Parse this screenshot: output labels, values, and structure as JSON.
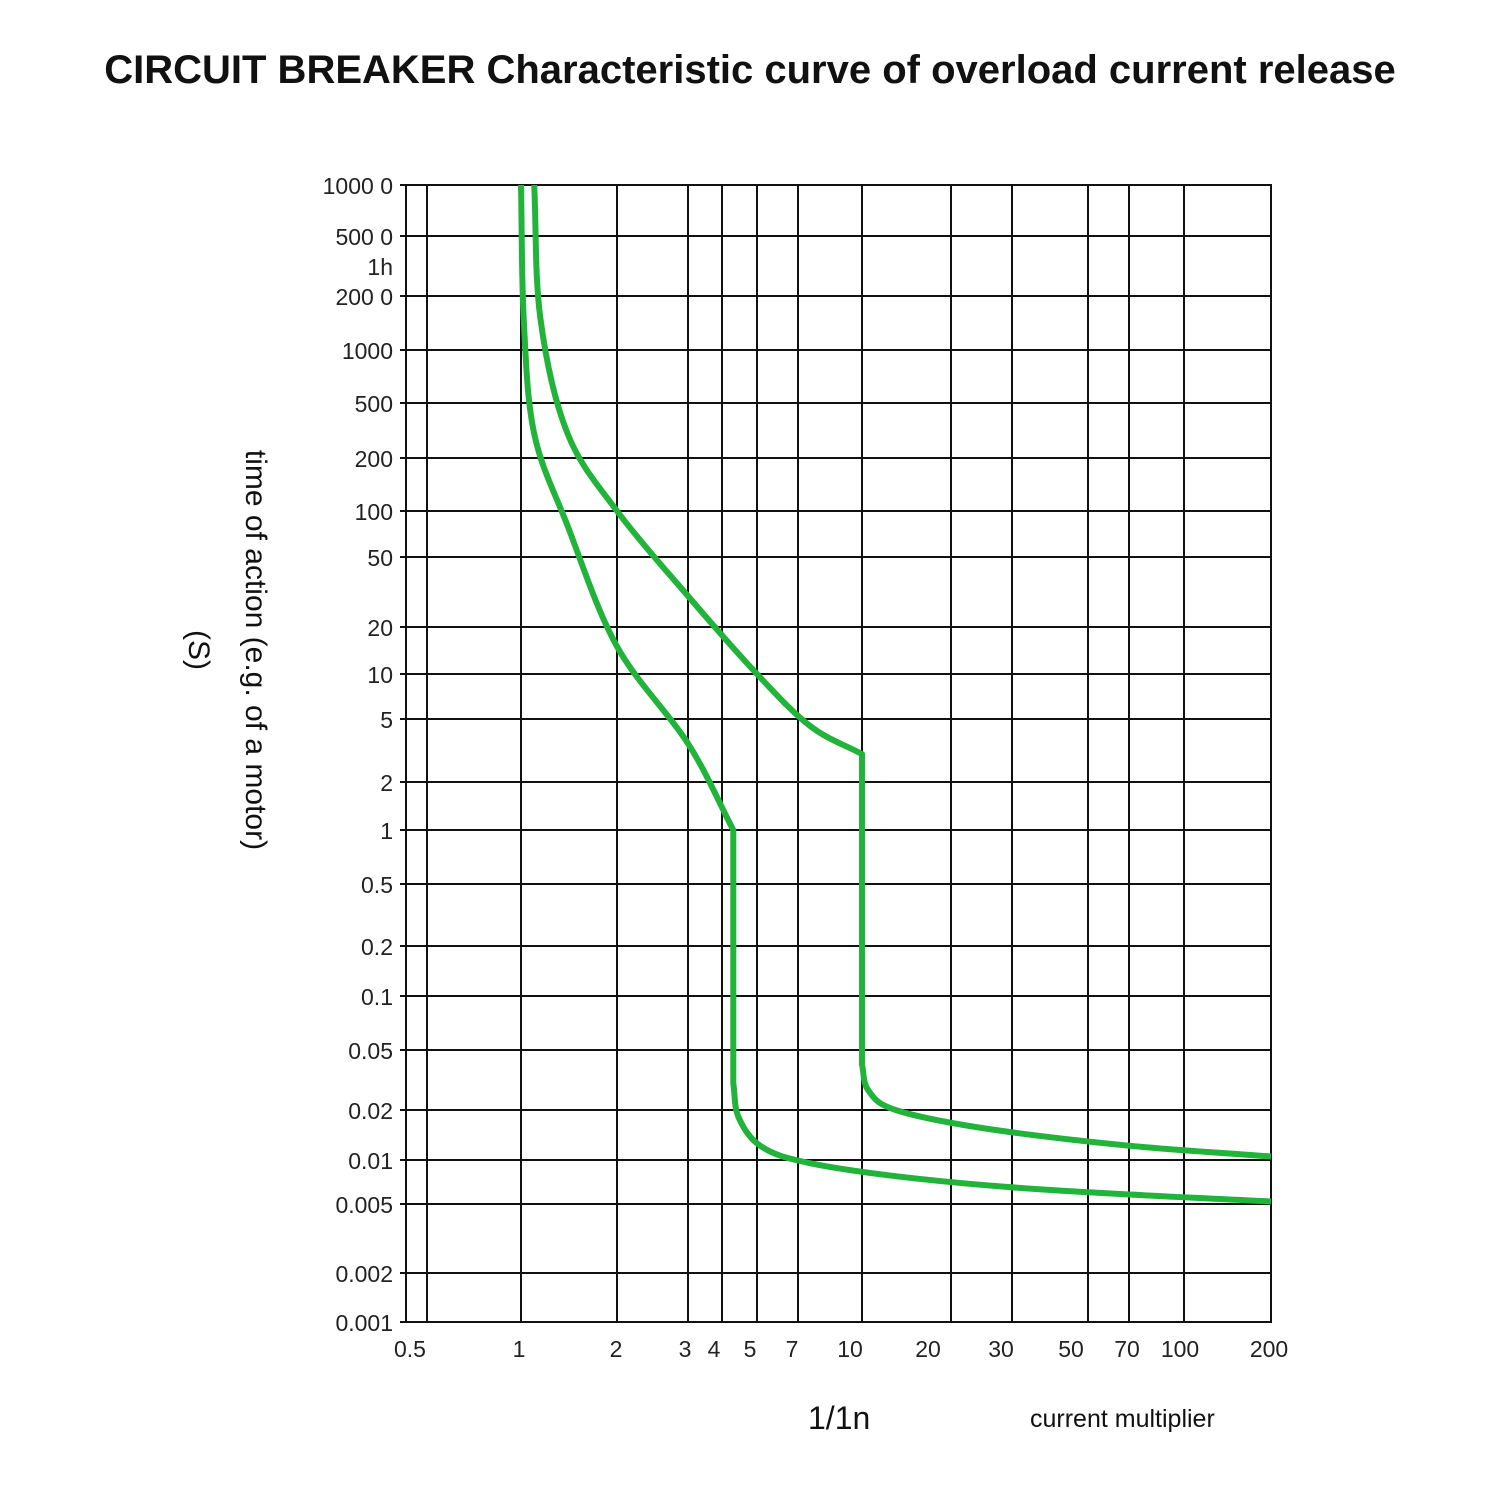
{
  "title": "CIRCUIT BREAKER Characteristic curve of overload current release",
  "chart_data": {
    "type": "line",
    "title": "CIRCUIT BREAKER Characteristic curve of overload current release",
    "xlabel": "1/1n",
    "xlabel_note": "current multiplier",
    "ylabel": "time of action (e.g. of a motor)",
    "ylabel_unit": "(S)",
    "x_scale": "log",
    "y_scale": "log",
    "xlim": [
      0.5,
      200
    ],
    "ylim": [
      0.001,
      10000
    ],
    "grid": true,
    "x_ticks": [
      {
        "label": "0.5",
        "value": 0.5
      },
      {
        "label": "1",
        "value": 1
      },
      {
        "label": "2",
        "value": 2
      },
      {
        "label": "3",
        "value": 3
      },
      {
        "label": "4",
        "value": 4
      },
      {
        "label": "5",
        "value": 5
      },
      {
        "label": "7",
        "value": 7
      },
      {
        "label": "10",
        "value": 10
      },
      {
        "label": "20",
        "value": 20
      },
      {
        "label": "30",
        "value": 30
      },
      {
        "label": "50",
        "value": 50
      },
      {
        "label": "70",
        "value": 70
      },
      {
        "label": "100",
        "value": 100
      },
      {
        "label": "200",
        "value": 200
      }
    ],
    "y_ticks": [
      {
        "label": "1000 0",
        "value": 10000
      },
      {
        "label": "500 0",
        "value": 5000
      },
      {
        "label": "1h",
        "value": 3600
      },
      {
        "label": "200 0",
        "value": 2000
      },
      {
        "label": "1000",
        "value": 1000
      },
      {
        "label": "500",
        "value": 500
      },
      {
        "label": "200",
        "value": 200
      },
      {
        "label": "100",
        "value": 100
      },
      {
        "label": "50",
        "value": 50
      },
      {
        "label": "20",
        "value": 20
      },
      {
        "label": "10",
        "value": 10
      },
      {
        "label": "5",
        "value": 5
      },
      {
        "label": "2",
        "value": 2
      },
      {
        "label": "1",
        "value": 1
      },
      {
        "label": "0.5",
        "value": 0.5
      },
      {
        "label": "0.2",
        "value": 0.2
      },
      {
        "label": "0.1",
        "value": 0.1
      },
      {
        "label": "0.05",
        "value": 0.05
      },
      {
        "label": "0.02",
        "value": 0.02
      },
      {
        "label": "0.01",
        "value": 0.01
      },
      {
        "label": "0.005",
        "value": 0.005
      },
      {
        "label": "0.002",
        "value": 0.002
      },
      {
        "label": "0.001",
        "value": 0.001
      }
    ],
    "curve_color": "#22b33a",
    "series": [
      {
        "points": [
          [
            1.0,
            10000
          ],
          [
            1.02,
            1500
          ],
          [
            1.1,
            300
          ],
          [
            1.4,
            80
          ],
          [
            2.0,
            15
          ],
          [
            3.0,
            3.5
          ],
          [
            4.3,
            1.0
          ],
          [
            4.3,
            0.03
          ],
          [
            4.45,
            0.018
          ],
          [
            5.2,
            0.012
          ],
          [
            7.5,
            0.0095
          ],
          [
            15,
            0.0075
          ],
          [
            40,
            0.0062
          ],
          [
            200,
            0.0052
          ]
        ]
      },
      {
        "points": [
          [
            1.1,
            10000
          ],
          [
            1.15,
            1500
          ],
          [
            1.4,
            300
          ],
          [
            2.0,
            100
          ],
          [
            3.0,
            30
          ],
          [
            5.0,
            10
          ],
          [
            7.5,
            4.5
          ],
          [
            10.0,
            3.0
          ],
          [
            10.0,
            0.04
          ],
          [
            10.5,
            0.027
          ],
          [
            13,
            0.02
          ],
          [
            25,
            0.0155
          ],
          [
            70,
            0.0122
          ],
          [
            200,
            0.0105
          ]
        ]
      }
    ]
  }
}
